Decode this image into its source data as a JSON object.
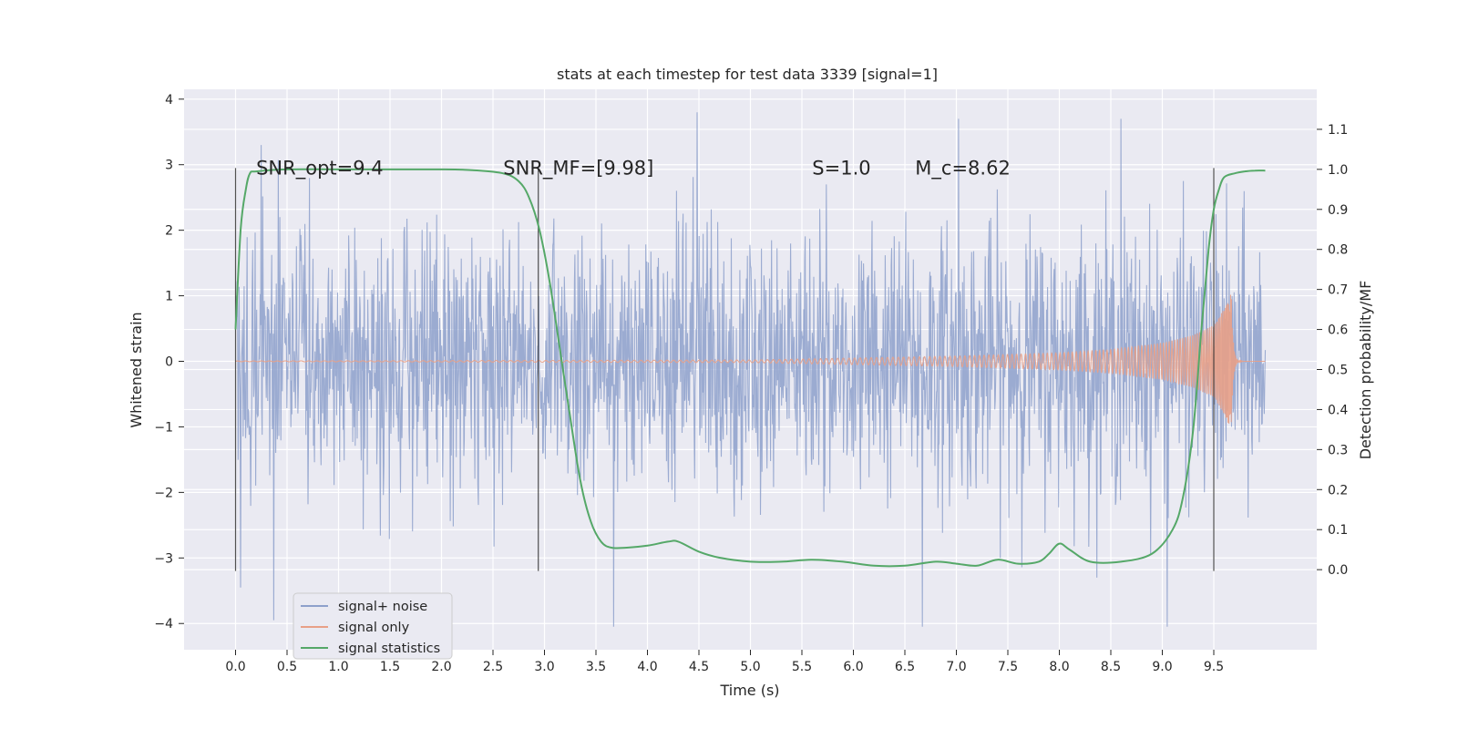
{
  "chart_data": {
    "type": "line",
    "title": "stats at each timestep for test data 3339 [signal=1]",
    "xlabel": "Time (s)",
    "ylabel": "Whitened strain",
    "y2label": "Detection probability/MF",
    "xlim": [
      -0.5,
      10.5
    ],
    "ylim": [
      -4.4,
      4.15
    ],
    "y2lim": [
      -0.2,
      1.2
    ],
    "xticks": [
      0.0,
      0.5,
      1.0,
      1.5,
      2.0,
      2.5,
      3.0,
      3.5,
      4.0,
      4.5,
      5.0,
      5.5,
      6.0,
      6.5,
      7.0,
      7.5,
      8.0,
      8.5,
      9.0,
      9.5
    ],
    "xtick_labels": [
      "0.0",
      "0.5",
      "1.0",
      "1.5",
      "2.0",
      "2.5",
      "3.0",
      "3.5",
      "4.0",
      "4.5",
      "5.0",
      "5.5",
      "6.0",
      "6.5",
      "7.0",
      "7.5",
      "8.0",
      "8.5",
      "9.0",
      "9.5"
    ],
    "yticks": [
      4,
      3,
      2,
      1,
      0,
      -1,
      -2,
      -3,
      -4
    ],
    "ytick_labels": [
      "4",
      "3",
      "2",
      "1",
      "0",
      "−1",
      "−2",
      "−3",
      "−4"
    ],
    "y2ticks": [
      1.1,
      1.0,
      0.9,
      0.8,
      0.7,
      0.6,
      0.5,
      0.4,
      0.3,
      0.2,
      0.1,
      0.0
    ],
    "y2tick_labels": [
      "1.1",
      "1.0",
      "0.9",
      "0.8",
      "0.7",
      "0.6",
      "0.5",
      "0.4",
      "0.3",
      "0.2",
      "0.1",
      "0.0"
    ],
    "grid": true,
    "legend": {
      "placement": "lower-left",
      "entries": [
        {
          "name": "signal+ noise",
          "color": "#8da0cb"
        },
        {
          "name": "signal only",
          "color": "#e8a087"
        },
        {
          "name": "signal statistics",
          "color": "#55a868"
        }
      ]
    },
    "annotations": [
      {
        "text": "SNR_opt=9.4",
        "x": 0.2,
        "y": 2.85
      },
      {
        "text": "SNR_MF=[9.98]",
        "x": 2.6,
        "y": 2.85
      },
      {
        "text": "S=1.0",
        "x": 5.6,
        "y": 2.85
      },
      {
        "text": "M_c=8.62",
        "x": 6.6,
        "y": 2.85
      }
    ],
    "vlines": [
      {
        "x": 0.0,
        "ymin": -3.2,
        "ymax": 2.95
      },
      {
        "x": 2.94,
        "ymin": -3.2,
        "ymax": 2.95
      },
      {
        "x": 9.5,
        "ymin": -3.2,
        "ymax": 2.95
      }
    ],
    "noise_series": {
      "name": "signal+ noise",
      "x_start": 0.0,
      "x_end": 10.0,
      "sample_rate_hz": 204.8,
      "amplitude_sd": 1.0,
      "peaks": [
        {
          "x": 4.48,
          "y": 3.8
        },
        {
          "x": 7.02,
          "y": 3.7
        },
        {
          "x": 8.6,
          "y": 3.7
        },
        {
          "x": 3.67,
          "y": -4.05
        },
        {
          "x": 6.67,
          "y": -4.05
        },
        {
          "x": 9.05,
          "y": -4.05
        },
        {
          "x": 0.37,
          "y": -3.95
        },
        {
          "x": 0.05,
          "y": -3.45
        }
      ]
    },
    "signal_only": {
      "name": "signal only",
      "x_start": 0.0,
      "x_end": 10.0,
      "peak_time": 9.67,
      "peak_amplitude": 1.05,
      "envelope": [
        [
          0.0,
          0.005
        ],
        [
          5.0,
          0.02
        ],
        [
          6.0,
          0.05
        ],
        [
          7.0,
          0.08
        ],
        [
          8.0,
          0.13
        ],
        [
          8.5,
          0.18
        ],
        [
          9.0,
          0.28
        ],
        [
          9.3,
          0.4
        ],
        [
          9.5,
          0.55
        ],
        [
          9.6,
          0.8
        ],
        [
          9.67,
          1.05
        ]
      ]
    },
    "signal_statistics": {
      "name": "signal statistics",
      "axis": "right",
      "x": [
        0.0,
        0.05,
        0.1,
        0.14,
        0.2,
        0.5,
        1.0,
        1.5,
        2.0,
        2.3,
        2.6,
        2.75,
        2.85,
        2.95,
        3.05,
        3.15,
        3.25,
        3.35,
        3.45,
        3.55,
        3.65,
        3.8,
        4.0,
        4.2,
        4.3,
        4.5,
        4.7,
        5.0,
        5.3,
        5.6,
        5.9,
        6.2,
        6.5,
        6.8,
        7.0,
        7.2,
        7.4,
        7.6,
        7.8,
        7.9,
        8.0,
        8.1,
        8.3,
        8.6,
        8.9,
        9.1,
        9.2,
        9.3,
        9.38,
        9.45,
        9.5,
        9.55,
        9.6,
        9.7,
        9.8,
        9.9,
        10.0
      ],
      "values": [
        0.6,
        0.85,
        0.95,
        0.99,
        0.995,
        1.0,
        1.0,
        1.0,
        1.0,
        0.998,
        0.99,
        0.97,
        0.93,
        0.85,
        0.72,
        0.55,
        0.38,
        0.22,
        0.12,
        0.07,
        0.055,
        0.055,
        0.06,
        0.07,
        0.07,
        0.045,
        0.03,
        0.02,
        0.02,
        0.025,
        0.02,
        0.01,
        0.01,
        0.02,
        0.015,
        0.01,
        0.025,
        0.015,
        0.02,
        0.04,
        0.065,
        0.05,
        0.02,
        0.02,
        0.04,
        0.1,
        0.18,
        0.35,
        0.6,
        0.8,
        0.9,
        0.95,
        0.98,
        0.99,
        0.995,
        0.997,
        0.997
      ]
    }
  }
}
